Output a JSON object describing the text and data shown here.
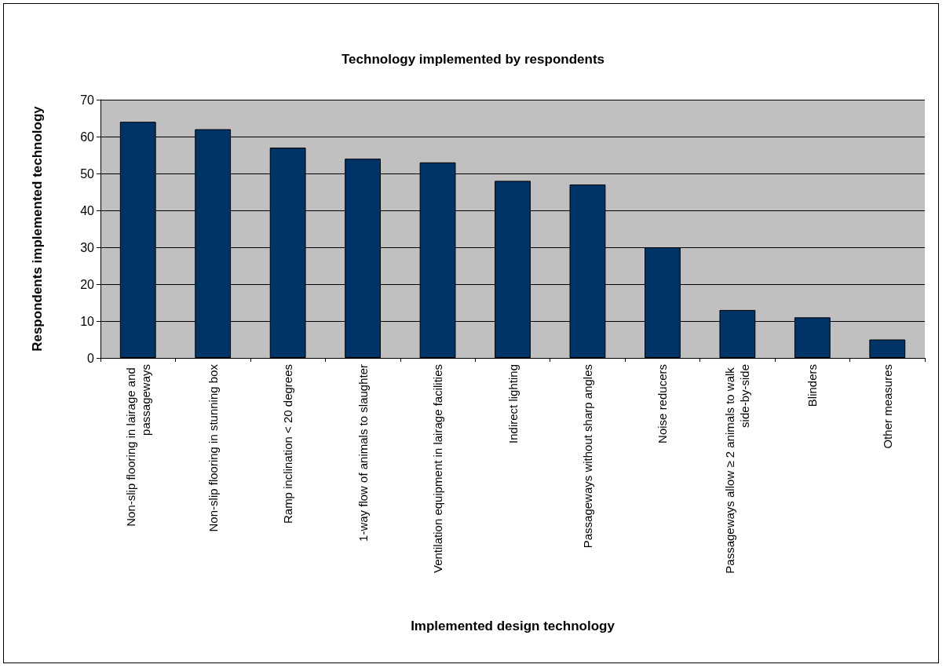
{
  "chart_data": {
    "type": "bar",
    "title": "Technology implemented by respondents",
    "xlabel": "Implemented design technology",
    "ylabel": "Respondents implemented technology",
    "categories": [
      "Non-slip flooring in lairage and passageways",
      "Non-slip flooring in stunning box",
      "Ramp inclination < 20 degrees",
      "1-way flow of animals to slaughter",
      "Ventilation equipment in lairage facilities",
      "Indirect lighting",
      "Passageways without sharp angles",
      "Noise reducers",
      "Passageways allow ≥ 2 animals to walk side-by-side",
      "Blinders",
      "Other measures"
    ],
    "values": [
      64,
      62,
      57,
      54,
      53,
      48,
      47,
      30,
      13,
      11,
      5
    ],
    "color": "#003366",
    "ylim": [
      0,
      70
    ],
    "yticks": [
      0,
      10,
      20,
      30,
      40,
      50,
      60,
      70
    ],
    "grid": "y"
  }
}
